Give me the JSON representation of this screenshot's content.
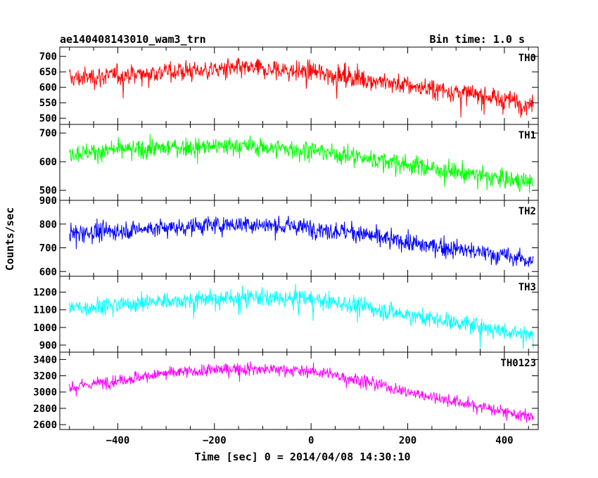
{
  "header": {
    "title": "ae140408143010_wam3_trn",
    "bin_time": "Bin time: 1.0 s"
  },
  "chart_data": [
    {
      "type": "line",
      "name": "TH0",
      "color": "#ff0000",
      "x_range": [
        -500,
        460
      ],
      "ylim": [
        480,
        730
      ],
      "yticks": [
        500,
        550,
        600,
        650,
        700
      ],
      "trend_x": [
        -500,
        -300,
        -150,
        0,
        100,
        200,
        300,
        400,
        460
      ],
      "trend_y": [
        628,
        650,
        660,
        650,
        630,
        605,
        585,
        560,
        545
      ],
      "noise_sd": 28
    },
    {
      "type": "line",
      "name": "TH1",
      "color": "#00ff00",
      "x_range": [
        -500,
        460
      ],
      "ylim": [
        465,
        730
      ],
      "yticks": [
        500,
        600,
        700
      ],
      "trend_x": [
        -500,
        -300,
        -150,
        0,
        100,
        200,
        300,
        400,
        460
      ],
      "trend_y": [
        630,
        648,
        655,
        640,
        615,
        590,
        565,
        540,
        525
      ],
      "noise_sd": 28
    },
    {
      "type": "line",
      "name": "TH2",
      "color": "#0000ff",
      "x_range": [
        -500,
        460
      ],
      "ylim": [
        580,
        900
      ],
      "yticks": [
        600,
        700,
        800,
        900
      ],
      "trend_x": [
        -500,
        -300,
        -150,
        0,
        100,
        200,
        300,
        400,
        460
      ],
      "trend_y": [
        760,
        785,
        800,
        785,
        760,
        720,
        695,
        665,
        645
      ],
      "noise_sd": 33
    },
    {
      "type": "line",
      "name": "TH3",
      "color": "#00ffff",
      "x_range": [
        -500,
        460
      ],
      "ylim": [
        860,
        1290
      ],
      "yticks": [
        900,
        1000,
        1100,
        1200
      ],
      "trend_x": [
        -500,
        -300,
        -150,
        0,
        100,
        200,
        300,
        400,
        460
      ],
      "trend_y": [
        1110,
        1150,
        1170,
        1160,
        1120,
        1070,
        1030,
        980,
        955
      ],
      "noise_sd": 42
    },
    {
      "type": "line",
      "name": "TH0123",
      "color": "#ff00ff",
      "x_range": [
        -500,
        460
      ],
      "ylim": [
        2540,
        3490
      ],
      "yticks": [
        2600,
        2800,
        3000,
        3200,
        3400
      ],
      "trend_x": [
        -500,
        -300,
        -150,
        0,
        100,
        200,
        300,
        400,
        460
      ],
      "trend_y": [
        3060,
        3230,
        3290,
        3260,
        3150,
        3000,
        2880,
        2760,
        2680
      ],
      "noise_sd": 65
    }
  ],
  "x_axis": {
    "ticks": [
      -400,
      -200,
      0,
      200,
      400
    ],
    "label": "Time [sec] 0 = 2014/04/08 14:30:10"
  },
  "y_axis_label": "Counts/sec"
}
